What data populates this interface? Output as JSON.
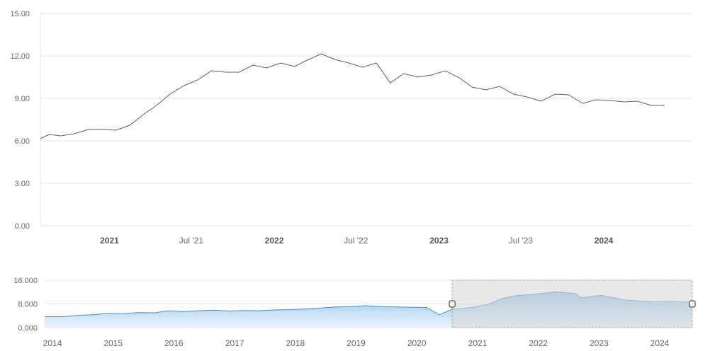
{
  "chart_data": {
    "type": "line",
    "grid": true,
    "main": {
      "ylim": [
        0,
        15
      ],
      "y_ticks": [
        "0.00",
        "3.00",
        "6.00",
        "9.00",
        "12.00",
        "15.00"
      ],
      "x_range": [
        "2020-08-01",
        "2024-07-15"
      ],
      "x_ticks": [
        {
          "date": "2021-01-01",
          "label": "2021",
          "bold": true
        },
        {
          "date": "2021-07-01",
          "label": "Jul '21",
          "bold": false
        },
        {
          "date": "2022-01-01",
          "label": "2022",
          "bold": true
        },
        {
          "date": "2022-07-01",
          "label": "Jul '22",
          "bold": false
        },
        {
          "date": "2023-01-01",
          "label": "2023",
          "bold": true
        },
        {
          "date": "2023-07-01",
          "label": "Jul '23",
          "bold": false
        },
        {
          "date": "2024-01-01",
          "label": "2024",
          "bold": true
        }
      ],
      "series": [
        {
          "color": "#4a6284",
          "points": [
            [
              "2020-08-01",
              6.15
            ],
            [
              "2020-08-20",
              6.45
            ],
            [
              "2020-09-15",
              6.35
            ],
            [
              "2020-10-15",
              6.5
            ],
            [
              "2020-11-15",
              6.8
            ],
            [
              "2020-12-15",
              6.82
            ],
            [
              "2021-01-15",
              6.75
            ],
            [
              "2021-02-15",
              7.1
            ],
            [
              "2021-03-15",
              7.8
            ],
            [
              "2021-04-15",
              8.5
            ],
            [
              "2021-05-15",
              9.3
            ],
            [
              "2021-06-15",
              9.9
            ],
            [
              "2021-07-15",
              10.3
            ],
            [
              "2021-08-15",
              10.95
            ],
            [
              "2021-09-15",
              10.85
            ],
            [
              "2021-10-15",
              10.85
            ],
            [
              "2021-11-15",
              11.35
            ],
            [
              "2021-12-15",
              11.15
            ],
            [
              "2022-01-15",
              11.5
            ],
            [
              "2022-02-15",
              11.25
            ],
            [
              "2022-03-15",
              11.7
            ],
            [
              "2022-04-15",
              12.15
            ],
            [
              "2022-05-15",
              11.75
            ],
            [
              "2022-06-15",
              11.5
            ],
            [
              "2022-07-15",
              11.2
            ],
            [
              "2022-08-15",
              11.5
            ],
            [
              "2022-09-15",
              10.1
            ],
            [
              "2022-10-15",
              10.75
            ],
            [
              "2022-11-15",
              10.5
            ],
            [
              "2022-12-15",
              10.65
            ],
            [
              "2023-01-15",
              10.95
            ],
            [
              "2023-02-15",
              10.45
            ],
            [
              "2023-03-15",
              9.8
            ],
            [
              "2023-04-15",
              9.6
            ],
            [
              "2023-05-15",
              9.85
            ],
            [
              "2023-06-15",
              9.3
            ],
            [
              "2023-07-15",
              9.1
            ],
            [
              "2023-08-15",
              8.8
            ],
            [
              "2023-09-15",
              9.3
            ],
            [
              "2023-10-15",
              9.25
            ],
            [
              "2023-11-15",
              8.65
            ],
            [
              "2023-12-15",
              8.9
            ],
            [
              "2024-01-15",
              8.85
            ],
            [
              "2024-02-15",
              8.75
            ],
            [
              "2024-03-15",
              8.8
            ],
            [
              "2024-04-15",
              8.5
            ],
            [
              "2024-05-15",
              8.5
            ]
          ]
        }
      ]
    },
    "navigator": {
      "ylim": [
        0,
        16
      ],
      "y_ticks": [
        "0.000",
        "8.000",
        "16.000"
      ],
      "x_range": [
        "2013-11-15",
        "2024-07-15"
      ],
      "x_ticks": [
        "2014",
        "2015",
        "2016",
        "2017",
        "2018",
        "2019",
        "2020",
        "2021",
        "2022",
        "2023",
        "2024"
      ],
      "line_color": "#3d8fd6",
      "fill_color_top": "#7fb8e8",
      "fill_color_bottom": "#e8f3fc",
      "selection": {
        "from": "2020-08-01",
        "to": "2024-07-15",
        "fill": "#d6d6d6",
        "border": "#aaaaaa"
      },
      "points": [
        [
          "2013-11-15",
          3.7
        ],
        [
          "2014-03-01",
          3.7
        ],
        [
          "2014-06-01",
          4.1
        ],
        [
          "2014-09-01",
          4.4
        ],
        [
          "2014-12-01",
          4.8
        ],
        [
          "2015-03-01",
          4.7
        ],
        [
          "2015-06-01",
          5.1
        ],
        [
          "2015-09-01",
          5.0
        ],
        [
          "2015-12-01",
          5.7
        ],
        [
          "2016-03-01",
          5.4
        ],
        [
          "2016-06-01",
          5.7
        ],
        [
          "2016-09-01",
          5.9
        ],
        [
          "2016-12-01",
          5.6
        ],
        [
          "2017-03-01",
          5.8
        ],
        [
          "2017-06-01",
          5.7
        ],
        [
          "2017-09-01",
          6.0
        ],
        [
          "2017-12-01",
          6.1
        ],
        [
          "2018-03-01",
          6.3
        ],
        [
          "2018-06-01",
          6.6
        ],
        [
          "2018-09-01",
          7.0
        ],
        [
          "2018-12-01",
          7.1
        ],
        [
          "2019-03-01",
          7.4
        ],
        [
          "2019-06-01",
          7.1
        ],
        [
          "2019-09-01",
          7.0
        ],
        [
          "2019-12-01",
          6.9
        ],
        [
          "2020-03-01",
          6.8
        ],
        [
          "2020-05-15",
          4.3
        ],
        [
          "2020-08-01",
          6.2
        ],
        [
          "2020-12-01",
          6.8
        ],
        [
          "2021-03-01",
          7.8
        ],
        [
          "2021-06-01",
          9.9
        ],
        [
          "2021-09-01",
          10.9
        ],
        [
          "2021-12-01",
          11.2
        ],
        [
          "2022-04-15",
          12.1
        ],
        [
          "2022-08-15",
          11.5
        ],
        [
          "2022-09-15",
          10.1
        ],
        [
          "2023-01-15",
          10.9
        ],
        [
          "2023-06-15",
          9.3
        ],
        [
          "2023-11-15",
          8.7
        ],
        [
          "2024-03-15",
          8.8
        ],
        [
          "2024-07-15",
          8.5
        ]
      ]
    }
  }
}
